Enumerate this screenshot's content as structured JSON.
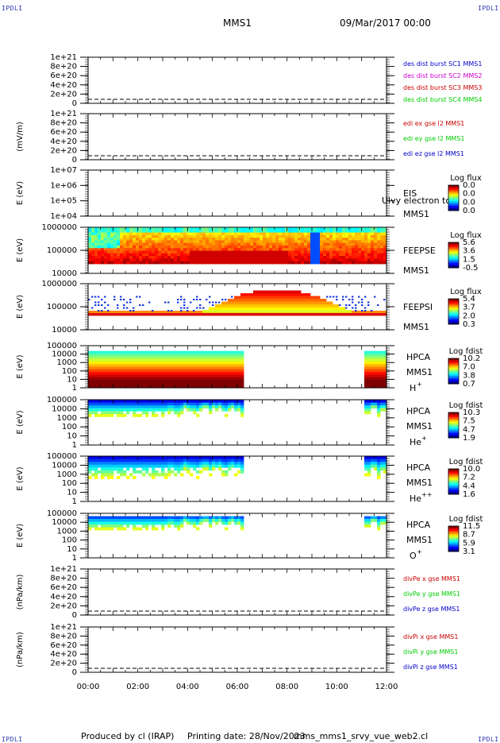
{
  "corner_label": "IPDLI",
  "header": {
    "spacecraft": "MMS1",
    "datetime": "09/Mar/2017 00:00"
  },
  "footer": {
    "produced": "Produced by cl (IRAP)",
    "printing": "Printing date: 28/Nov/2023",
    "script": "mms_mms1_srvy_vue_web2.cl"
  },
  "chart_data": [
    {
      "type": "line",
      "id": "des",
      "ylabel": "",
      "yticks": [
        "1e+21",
        "8e+20",
        "6e+20",
        "4e+20",
        "2e+20",
        "0"
      ],
      "series": [
        {
          "name": "des dist burst SC1 MMS1",
          "color": "#0000cc"
        },
        {
          "name": "des dist burst SC2 MMS2",
          "color": "#cc00cc"
        },
        {
          "name": "des dist burst SC3 MMS3",
          "color": "#cc0000"
        },
        {
          "name": "des dist burst SC4 MMS4",
          "color": "#00cc00"
        }
      ],
      "values": []
    },
    {
      "type": "line",
      "id": "edi",
      "ylabel": "(mV/m)",
      "yticks": [
        "1e+21",
        "8e+20",
        "6e+20",
        "4e+20",
        "2e+20",
        "0"
      ],
      "series": [
        {
          "name": "edi ex gse l2 MMS1",
          "color": "#cc0000"
        },
        {
          "name": "edi ey gse l2 MMS1",
          "color": "#00cc00"
        },
        {
          "name": "edi ez gse l2 MMS1",
          "color": "#0000cc"
        }
      ],
      "values": []
    },
    {
      "type": "heatmap",
      "id": "eis",
      "ylabel": "E (eV)",
      "yticks": [
        "1e+07",
        "1e+06",
        "1e+05",
        "1e+04"
      ],
      "labels": [
        "EIS",
        "MMS1"
      ],
      "overlay": "Ulvy electron to",
      "colorbar": {
        "title": "Log flux",
        "ticks": [
          "0.0",
          "0.0",
          "0.0",
          "0.0"
        ]
      }
    },
    {
      "type": "heatmap",
      "id": "feepse",
      "ylabel": "E (eV)",
      "yticks": [
        "1000000",
        "100000",
        "10000"
      ],
      "labels": [
        "FEEPSE",
        "MMS1"
      ],
      "colorbar": {
        "title": "Log flux",
        "ticks": [
          "5.6",
          "3.6",
          "1.5",
          "-0.5"
        ]
      }
    },
    {
      "type": "heatmap",
      "id": "feepsi",
      "ylabel": "E (eV)",
      "yticks": [
        "1000000",
        "100000",
        "10000"
      ],
      "labels": [
        "FEEPSI",
        "MMS1"
      ],
      "colorbar": {
        "title": "Log flux",
        "ticks": [
          "5.4",
          "3.7",
          "2.0",
          "0.3"
        ]
      }
    },
    {
      "type": "heatmap",
      "id": "hpca_h",
      "ylabel": "E (eV)",
      "yticks": [
        "100000",
        "10000",
        "1000",
        "100",
        "10",
        "1"
      ],
      "labels": [
        "HPCA",
        "MMS1"
      ],
      "species": "H",
      "charge": "+",
      "colorbar": {
        "title": "Log fdist",
        "ticks": [
          "10.2",
          "7.0",
          "3.8",
          "0.7"
        ]
      }
    },
    {
      "type": "heatmap",
      "id": "hpca_he",
      "ylabel": "E (eV)",
      "yticks": [
        "100000",
        "10000",
        "1000",
        "100",
        "10",
        "1"
      ],
      "labels": [
        "HPCA",
        "MMS1"
      ],
      "species": "He",
      "charge": "+",
      "colorbar": {
        "title": "Log fdist",
        "ticks": [
          "10.3",
          "7.5",
          "4.7",
          "1.9"
        ]
      }
    },
    {
      "type": "heatmap",
      "id": "hpca_hepp",
      "ylabel": "E (eV)",
      "yticks": [
        "100000",
        "10000",
        "1000",
        "100",
        "10",
        "1"
      ],
      "labels": [
        "HPCA",
        "MMS1"
      ],
      "species": "He",
      "charge": "++",
      "colorbar": {
        "title": "Log fdist",
        "ticks": [
          "10.0",
          "7.2",
          "4.4",
          "1.6"
        ]
      }
    },
    {
      "type": "heatmap",
      "id": "hpca_o",
      "ylabel": "E (eV)",
      "yticks": [
        "100000",
        "10000",
        "1000",
        "100",
        "10",
        "1"
      ],
      "labels": [
        "HPCA",
        "MMS1"
      ],
      "species": "O",
      "charge": "+",
      "colorbar": {
        "title": "Log fdist",
        "ticks": [
          "11.5",
          "8.7",
          "5.9",
          "3.1"
        ]
      }
    },
    {
      "type": "line",
      "id": "dive",
      "ylabel": "(nPa/km)",
      "yticks": [
        "1e+21",
        "8e+20",
        "6e+20",
        "4e+20",
        "2e+20",
        "0"
      ],
      "series": [
        {
          "name": "divPe x gse MMS1",
          "color": "#cc0000"
        },
        {
          "name": "divPe y gse MMS1",
          "color": "#00cc00"
        },
        {
          "name": "divPe z gse MMS1",
          "color": "#0000cc"
        }
      ],
      "values": []
    },
    {
      "type": "line",
      "id": "divi",
      "ylabel": "(nPa/km)",
      "yticks": [
        "1e+21",
        "8e+20",
        "6e+20",
        "4e+20",
        "2e+20",
        "0"
      ],
      "series": [
        {
          "name": "divPi x gse MMS1",
          "color": "#cc0000"
        },
        {
          "name": "divPi y gse MMS1",
          "color": "#00cc00"
        },
        {
          "name": "divPi z gse MMS1",
          "color": "#0000cc"
        }
      ],
      "values": []
    }
  ],
  "xaxis": {
    "ticks": [
      "00:00",
      "02:00",
      "04:00",
      "06:00",
      "08:00",
      "10:00",
      "12:00"
    ],
    "range_hours": [
      0,
      12
    ]
  },
  "hpca_gap_hours": [
    6.25,
    11.05
  ]
}
